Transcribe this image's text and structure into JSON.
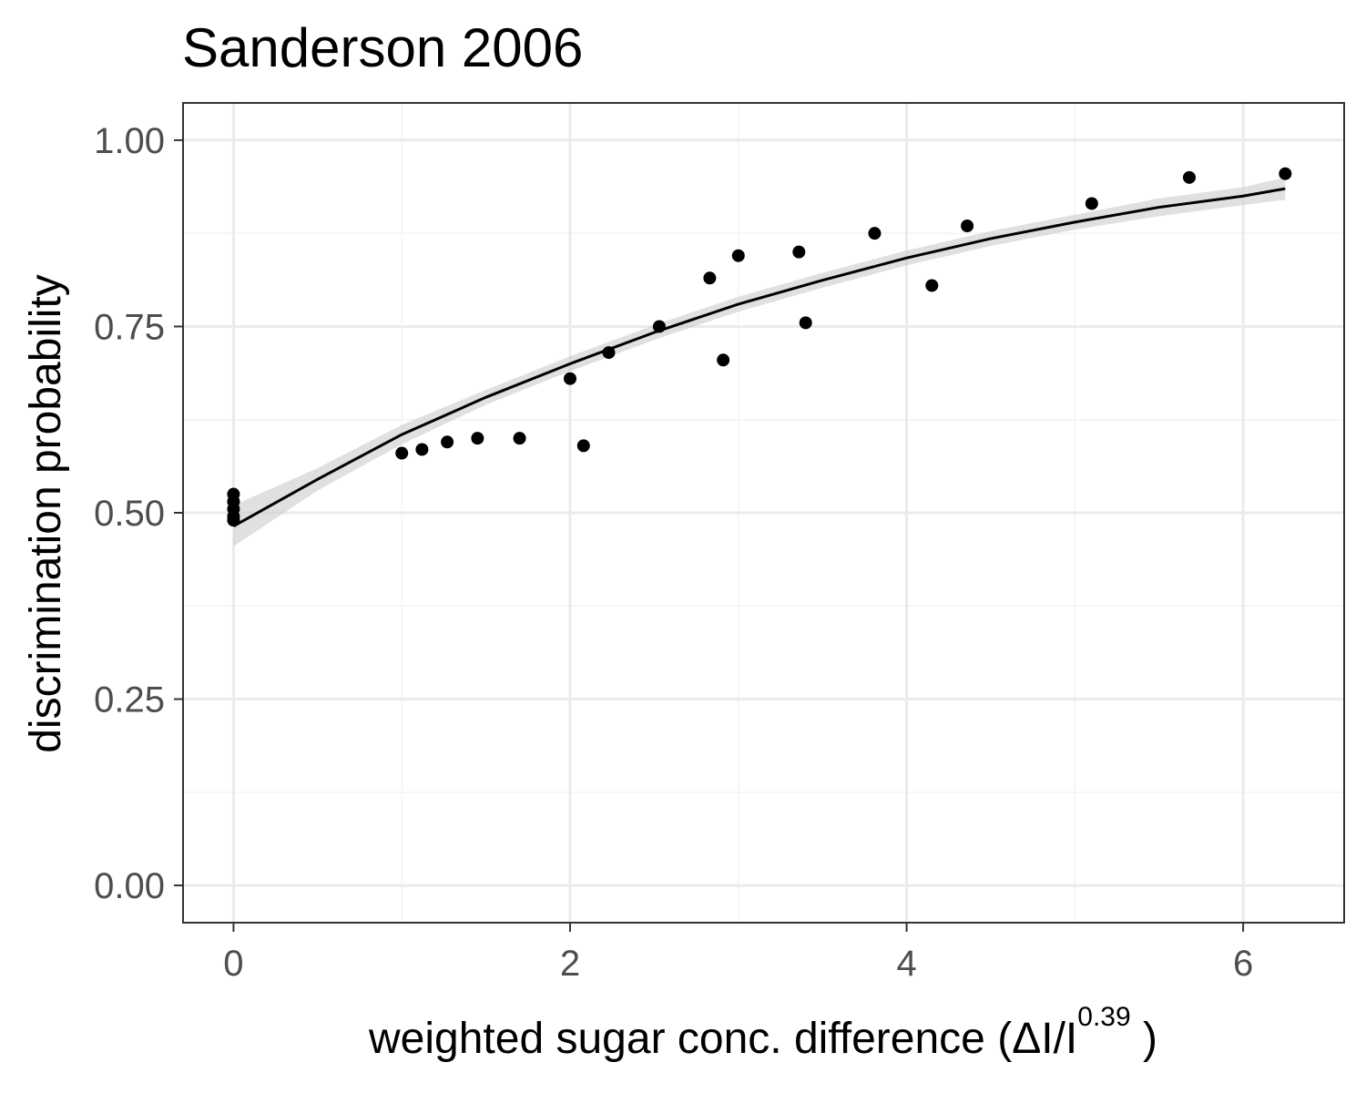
{
  "chart_data": {
    "type": "scatter",
    "title": "Sanderson 2006",
    "xlabel": {
      "main": "weighted  sugar conc.  difference (ΔI/I",
      "superscript": "0.39",
      "close": " )"
    },
    "ylabel": "discrimination probability",
    "xlim": [
      -0.3,
      6.6
    ],
    "ylim": [
      -0.05,
      1.05
    ],
    "x_ticks": [
      0,
      2,
      4,
      6
    ],
    "x_tick_labels": [
      "0",
      "2",
      "4",
      "6"
    ],
    "y_ticks": [
      0.0,
      0.25,
      0.5,
      0.75,
      1.0
    ],
    "y_tick_labels": [
      "0.00",
      "0.25",
      "0.50",
      "0.75",
      "1.00"
    ],
    "grid": true,
    "points": [
      {
        "x": 0.0,
        "y": 0.525
      },
      {
        "x": 0.0,
        "y": 0.515
      },
      {
        "x": 0.0,
        "y": 0.505
      },
      {
        "x": 0.0,
        "y": 0.495
      },
      {
        "x": 0.0,
        "y": 0.49
      },
      {
        "x": 1.0,
        "y": 0.58
      },
      {
        "x": 1.12,
        "y": 0.585
      },
      {
        "x": 1.27,
        "y": 0.595
      },
      {
        "x": 1.45,
        "y": 0.6
      },
      {
        "x": 1.7,
        "y": 0.6
      },
      {
        "x": 2.0,
        "y": 0.68
      },
      {
        "x": 2.08,
        "y": 0.59
      },
      {
        "x": 2.23,
        "y": 0.715
      },
      {
        "x": 2.53,
        "y": 0.75
      },
      {
        "x": 2.83,
        "y": 0.815
      },
      {
        "x": 2.91,
        "y": 0.705
      },
      {
        "x": 3.0,
        "y": 0.845
      },
      {
        "x": 3.36,
        "y": 0.85
      },
      {
        "x": 3.4,
        "y": 0.755
      },
      {
        "x": 3.81,
        "y": 0.875
      },
      {
        "x": 4.15,
        "y": 0.805
      },
      {
        "x": 4.36,
        "y": 0.885
      },
      {
        "x": 5.1,
        "y": 0.915
      },
      {
        "x": 5.68,
        "y": 0.95
      },
      {
        "x": 6.25,
        "y": 0.955
      }
    ],
    "fit_line": {
      "x": [
        0.0,
        0.5,
        1.0,
        1.5,
        2.0,
        2.5,
        3.0,
        3.5,
        4.0,
        4.5,
        5.0,
        5.5,
        6.0,
        6.25
      ],
      "y": [
        0.482,
        0.545,
        0.605,
        0.655,
        0.7,
        0.742,
        0.78,
        0.812,
        0.842,
        0.868,
        0.89,
        0.91,
        0.925,
        0.935
      ]
    },
    "confidence_band": {
      "x": [
        0.0,
        0.5,
        1.0,
        1.5,
        2.0,
        2.5,
        3.0,
        3.5,
        4.0,
        4.5,
        5.0,
        5.5,
        6.0,
        6.25
      ],
      "lower": [
        0.455,
        0.53,
        0.592,
        0.645,
        0.69,
        0.732,
        0.77,
        0.802,
        0.832,
        0.858,
        0.88,
        0.898,
        0.913,
        0.92
      ],
      "upper": [
        0.51,
        0.56,
        0.618,
        0.665,
        0.71,
        0.752,
        0.79,
        0.822,
        0.852,
        0.878,
        0.9,
        0.922,
        0.937,
        0.95
      ]
    },
    "colors": {
      "points": "#000000",
      "line": "#000000",
      "band": "#cccccc",
      "grid_major": "#ebebeb",
      "grid_minor": "#f3f3f3",
      "panel_border": "#333333",
      "tick_text": "#4d4d4d"
    }
  }
}
